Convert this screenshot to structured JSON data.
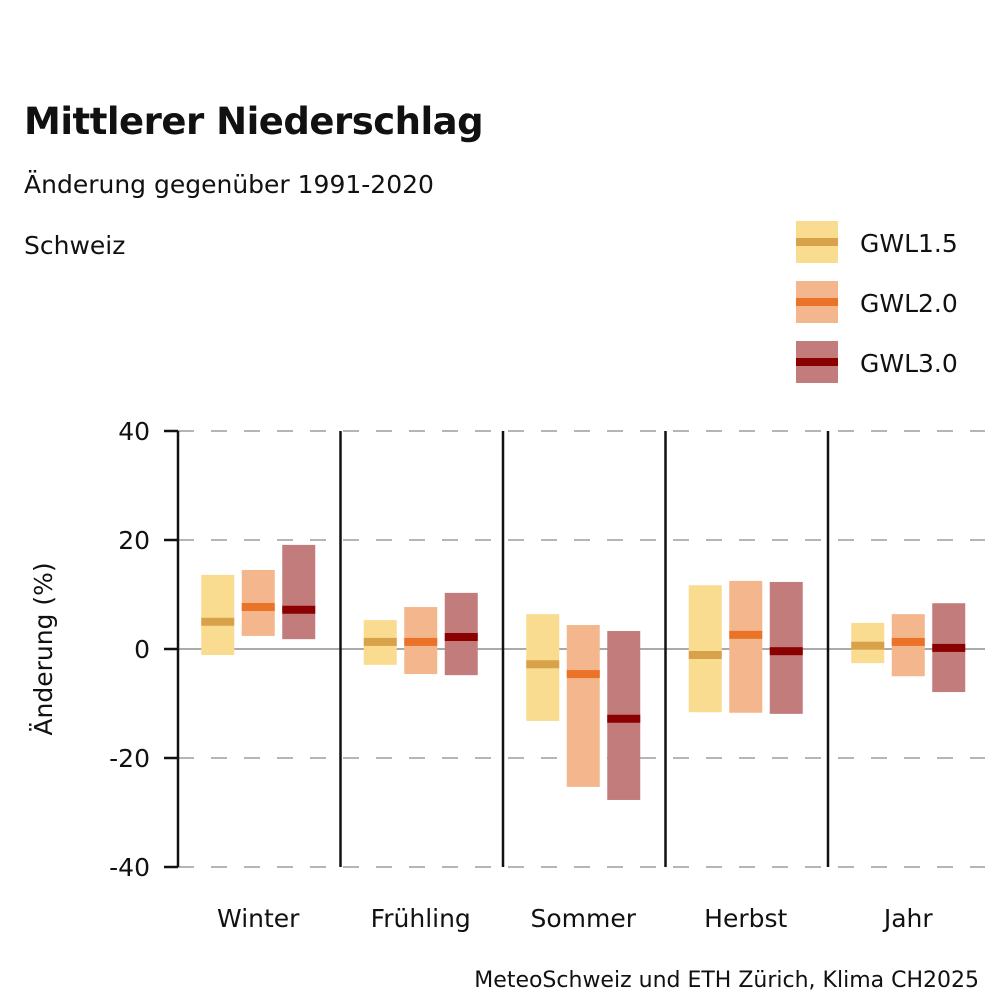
{
  "chart_data": {
    "type": "bar",
    "subtype": "range-bars-with-median",
    "title": "Mittlerer Niederschlag",
    "subtitle": "Änderung gegenüber 1991-2020",
    "region": "Schweiz",
    "ylabel": "Änderung (%)",
    "xlabel": "",
    "ylim": [
      -40,
      40
    ],
    "yticks": [
      40,
      20,
      0,
      -20,
      -40
    ],
    "grid": true,
    "legend_position": "top-right",
    "categories": [
      "Winter",
      "Frühling",
      "Sommer",
      "Herbst",
      "Jahr"
    ],
    "series": [
      {
        "name": "GWL1.5",
        "fill_color": "#f9dc8f",
        "median_color": "#d8a24a",
        "low": [
          -1.1,
          -2.9,
          -13.2,
          -11.6,
          -2.6
        ],
        "median": [
          5.0,
          1.3,
          -2.8,
          -1.1,
          0.6
        ],
        "high": [
          13.6,
          5.3,
          6.4,
          11.7,
          4.8
        ]
      },
      {
        "name": "GWL2.0",
        "fill_color": "#f4b78d",
        "median_color": "#ea7327",
        "low": [
          2.4,
          -4.6,
          -25.3,
          -11.7,
          -5.0
        ],
        "median": [
          7.7,
          1.3,
          -4.6,
          2.6,
          1.3
        ],
        "high": [
          14.5,
          7.7,
          4.4,
          12.5,
          6.4
        ]
      },
      {
        "name": "GWL3.0",
        "fill_color": "#c27c7b",
        "median_color": "#8b0000",
        "low": [
          1.8,
          -4.8,
          -27.7,
          -11.9,
          -7.9
        ],
        "median": [
          7.2,
          2.2,
          -12.8,
          -0.4,
          0.2
        ],
        "high": [
          19.1,
          10.3,
          3.3,
          12.3,
          8.4
        ]
      }
    ]
  },
  "source": "MeteoSchweiz und ETH Zürich, Klima CH2025"
}
